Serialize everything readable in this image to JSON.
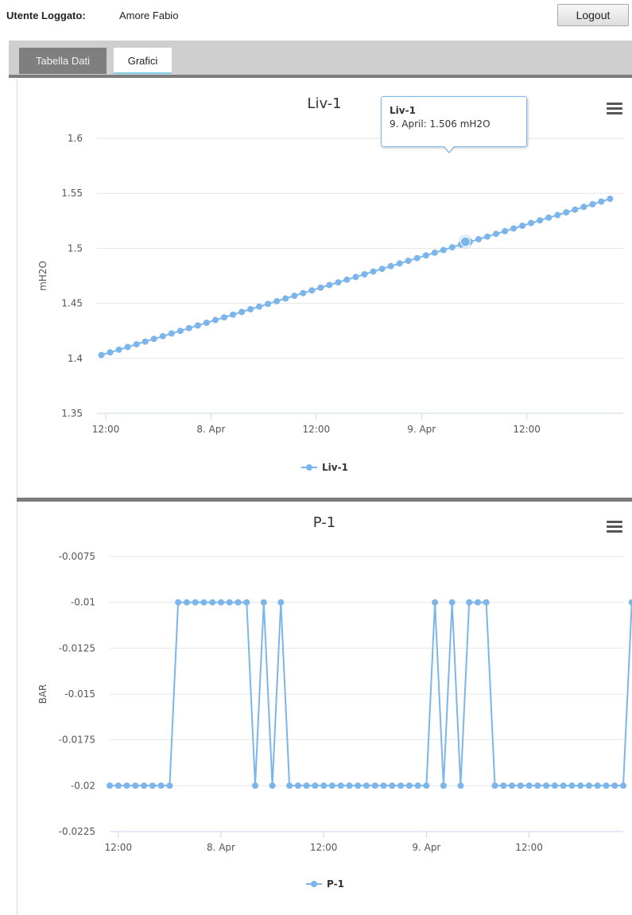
{
  "header": {
    "user_label": "Utente Loggato:",
    "user_name": "Amore Fabio",
    "logout_label": "Logout"
  },
  "tabs": [
    {
      "label": "Tabella Dati",
      "active": false
    },
    {
      "label": "Grafici",
      "active": true
    }
  ],
  "colors": {
    "series": "#7cb5ec",
    "grid": "#e6e6e6",
    "tab_active_underline": "#7fcfe8",
    "tab_inactive": "#7f7f7f"
  },
  "icons": {
    "chart_menu": "hamburger-menu-icon"
  },
  "chart_data": [
    {
      "type": "line",
      "title": "Liv-1",
      "ylabel": "mH2O",
      "xlabel": "",
      "ylim": [
        1.35,
        1.6
      ],
      "yticks": [
        "1.6",
        "1.55",
        "1.5",
        "1.45",
        "1.4",
        "1.35"
      ],
      "ytick_values": [
        1.6,
        1.55,
        1.5,
        1.45,
        1.4,
        1.35
      ],
      "xticks": [
        "12:00",
        "8. Apr",
        "12:00",
        "9. Apr",
        "12:00"
      ],
      "xtick_values": [
        12,
        24,
        36,
        48,
        60
      ],
      "xlim": [
        11,
        71
      ],
      "grid": true,
      "legend": "bottom-center",
      "series": [
        {
          "name": "Liv-1",
          "start_x": 11.5,
          "step": 1,
          "count": 59,
          "y_start": 1.403,
          "y_end": 1.545
        }
      ],
      "tooltip": {
        "title": "Liv-1",
        "text": "9. April: 1.506 mH2O",
        "x": 53,
        "y": 1.506
      }
    },
    {
      "type": "line",
      "title": "P-1",
      "ylabel": "BAR",
      "xlabel": "",
      "ylim": [
        -0.0225,
        -0.0075
      ],
      "yticks": [
        "-0.0075",
        "-0.01",
        "-0.0125",
        "-0.015",
        "-0.0175",
        "-0.02",
        "-0.0225"
      ],
      "ytick_values": [
        -0.0075,
        -0.01,
        -0.0125,
        -0.015,
        -0.0175,
        -0.02,
        -0.0225
      ],
      "xticks": [
        "12:00",
        "8. Apr",
        "12:00",
        "9. Apr",
        "12:00"
      ],
      "xtick_values": [
        12,
        24,
        36,
        48,
        60
      ],
      "xlim": [
        11,
        71
      ],
      "grid": true,
      "legend": "bottom-center",
      "series": [
        {
          "name": "P-1",
          "start_x": 11,
          "step": 1,
          "values": [
            -0.02,
            -0.02,
            -0.02,
            -0.02,
            -0.02,
            -0.02,
            -0.02,
            -0.02,
            -0.01,
            -0.01,
            -0.01,
            -0.01,
            -0.01,
            -0.01,
            -0.01,
            -0.01,
            -0.01,
            -0.02,
            -0.01,
            -0.02,
            -0.01,
            -0.02,
            -0.02,
            -0.02,
            -0.02,
            -0.02,
            -0.02,
            -0.02,
            -0.02,
            -0.02,
            -0.02,
            -0.02,
            -0.02,
            -0.02,
            -0.02,
            -0.02,
            -0.02,
            -0.02,
            -0.01,
            -0.02,
            -0.01,
            -0.02,
            -0.01,
            -0.01,
            -0.01,
            -0.02,
            -0.02,
            -0.02,
            -0.02,
            -0.02,
            -0.02,
            -0.02,
            -0.02,
            -0.02,
            -0.02,
            -0.02,
            -0.02,
            -0.02,
            -0.02,
            -0.02,
            -0.02,
            -0.01
          ]
        }
      ]
    }
  ]
}
